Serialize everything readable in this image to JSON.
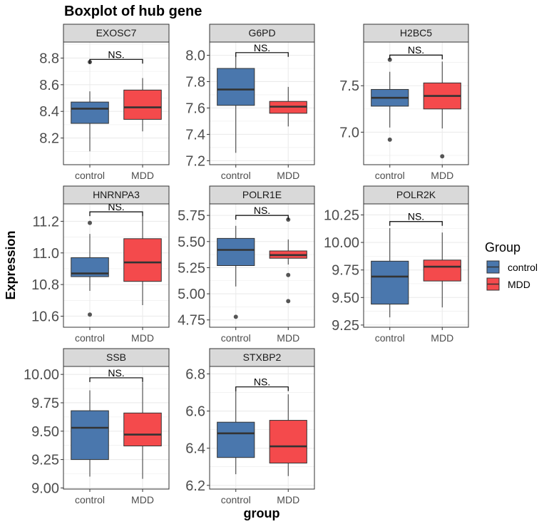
{
  "chart_data": {
    "type": "boxplot",
    "title": "Boxplot of hub gene",
    "xlabel": "group",
    "ylabel": "Expression",
    "legend": {
      "title": "Group",
      "position": "right",
      "entries": [
        "control",
        "MDD"
      ]
    },
    "colors": {
      "control": "#4a77ad",
      "MDD": "#f44a4c",
      "strip_bg": "#d9d9d9",
      "grid": "#ebebeb",
      "axis_text": "#4d4d4d"
    },
    "categories": [
      "control",
      "MDD"
    ],
    "significance_label": "NS.",
    "panels": [
      {
        "gene": "EXOSC7",
        "ylim": [
          8.0,
          8.92
        ],
        "yticks": [
          8.2,
          8.4,
          8.6,
          8.8
        ],
        "ytick_labels": [
          "8.2",
          "8.4",
          "8.6",
          "8.8"
        ],
        "boxes": [
          {
            "group": "control",
            "min": 8.1,
            "q1": 8.31,
            "median": 8.42,
            "q3": 8.47,
            "max": 8.55,
            "outliers": [
              8.77
            ]
          },
          {
            "group": "MDD",
            "min": 8.25,
            "q1": 8.34,
            "median": 8.43,
            "q3": 8.56,
            "max": 8.65,
            "outliers": []
          }
        ],
        "bracket_y": 8.79
      },
      {
        "gene": "G6PD",
        "ylim": [
          7.17,
          8.1
        ],
        "yticks": [
          7.2,
          7.4,
          7.6,
          7.8,
          8.0
        ],
        "ytick_labels": [
          "7.2",
          "7.4",
          "7.6",
          "7.8",
          "8.0"
        ],
        "boxes": [
          {
            "group": "control",
            "min": 7.26,
            "q1": 7.62,
            "median": 7.74,
            "q3": 7.9,
            "max": 8.0,
            "outliers": []
          },
          {
            "group": "MDD",
            "min": 7.46,
            "q1": 7.56,
            "median": 7.61,
            "q3": 7.65,
            "max": 7.76,
            "outliers": []
          }
        ],
        "bracket_y": 8.02
      },
      {
        "gene": "H2BC5",
        "ylim": [
          6.65,
          7.97
        ],
        "yticks": [
          7.0,
          7.5
        ],
        "ytick_labels": [
          "7.0",
          "7.5"
        ],
        "boxes": [
          {
            "group": "control",
            "min": 7.05,
            "q1": 7.28,
            "median": 7.37,
            "q3": 7.46,
            "max": 7.65,
            "outliers": [
              7.78,
              6.92
            ]
          },
          {
            "group": "MDD",
            "min": 7.04,
            "q1": 7.25,
            "median": 7.39,
            "q3": 7.53,
            "max": 7.76,
            "outliers": [
              6.74
            ]
          }
        ],
        "bracket_y": 7.83
      },
      {
        "gene": "HNRNPA3",
        "ylim": [
          10.53,
          11.31
        ],
        "yticks": [
          10.6,
          10.8,
          11.0,
          11.2
        ],
        "ytick_labels": [
          "10.6",
          "10.8",
          "11.0",
          "11.2"
        ],
        "boxes": [
          {
            "group": "control",
            "min": 10.76,
            "q1": 10.85,
            "median": 10.87,
            "q3": 10.97,
            "max": 11.12,
            "outliers": [
              11.19,
              10.61
            ]
          },
          {
            "group": "MDD",
            "min": 10.67,
            "q1": 10.82,
            "median": 10.94,
            "q3": 11.09,
            "max": 11.24,
            "outliers": []
          }
        ],
        "bracket_y": 11.26
      },
      {
        "gene": "POLR1E",
        "ylim": [
          4.68,
          5.86
        ],
        "yticks": [
          4.75,
          5.0,
          5.25,
          5.5,
          5.75
        ],
        "ytick_labels": [
          "4.75",
          "5.00",
          "5.25",
          "5.50",
          "5.75"
        ],
        "boxes": [
          {
            "group": "control",
            "min": 5.07,
            "q1": 5.27,
            "median": 5.42,
            "q3": 5.53,
            "max": 5.65,
            "outliers": [
              4.78
            ]
          },
          {
            "group": "MDD",
            "min": 5.28,
            "q1": 5.34,
            "median": 5.37,
            "q3": 5.41,
            "max": 5.52,
            "outliers": [
              5.71,
              5.18,
              4.93
            ]
          }
        ],
        "bracket_y": 5.75
      },
      {
        "gene": "POLR2K",
        "ylim": [
          9.23,
          10.35
        ],
        "yticks": [
          9.25,
          9.5,
          9.75,
          10.0,
          10.25
        ],
        "ytick_labels": [
          "9.25",
          "9.50",
          "9.75",
          "10.00",
          "10.25"
        ],
        "boxes": [
          {
            "group": "control",
            "min": 9.32,
            "q1": 9.44,
            "median": 9.69,
            "q3": 9.83,
            "max": 10.13,
            "outliers": []
          },
          {
            "group": "MDD",
            "min": 9.41,
            "q1": 9.65,
            "median": 9.78,
            "q3": 9.84,
            "max": 10.09,
            "outliers": []
          }
        ],
        "bracket_y": 10.19
      },
      {
        "gene": "SSB",
        "ylim": [
          8.99,
          10.07
        ],
        "yticks": [
          9.0,
          9.25,
          9.5,
          9.75,
          10.0
        ],
        "ytick_labels": [
          "9.00",
          "9.25",
          "9.50",
          "9.75",
          "10.00"
        ],
        "boxes": [
          {
            "group": "control",
            "min": 9.1,
            "q1": 9.25,
            "median": 9.53,
            "q3": 9.68,
            "max": 9.86,
            "outliers": []
          },
          {
            "group": "MDD",
            "min": 9.08,
            "q1": 9.37,
            "median": 9.47,
            "q3": 9.66,
            "max": 9.93,
            "outliers": []
          }
        ],
        "bracket_y": 9.97
      },
      {
        "gene": "STXBP2",
        "ylim": [
          6.18,
          6.84
        ],
        "yticks": [
          6.2,
          6.4,
          6.6,
          6.8
        ],
        "ytick_labels": [
          "6.2",
          "6.4",
          "6.6",
          "6.8"
        ],
        "boxes": [
          {
            "group": "control",
            "min": 6.26,
            "q1": 6.35,
            "median": 6.48,
            "q3": 6.54,
            "max": 6.71,
            "outliers": []
          },
          {
            "group": "MDD",
            "min": 6.25,
            "q1": 6.32,
            "median": 6.41,
            "q3": 6.55,
            "max": 6.69,
            "outliers": []
          }
        ],
        "bracket_y": 6.73
      }
    ]
  }
}
